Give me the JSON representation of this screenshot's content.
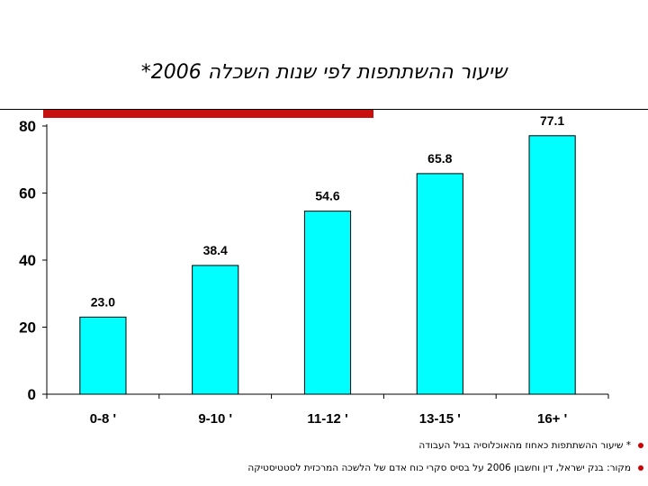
{
  "chart_data": {
    "type": "bar",
    "title": "שיעור ההשתתפות לפי שנות השכלה 2006*",
    "categories": [
      "0-8 '",
      "9-10 '",
      "11-12 '",
      "13-15 '",
      "16+ '"
    ],
    "values": [
      23.0,
      38.4,
      54.6,
      65.8,
      77.1
    ],
    "value_labels": [
      "23.0",
      "38.4",
      "54.6",
      "65.8",
      "77.1"
    ],
    "yticks": [
      "0",
      "20",
      "40",
      "60",
      "80"
    ],
    "ytick_values": [
      0,
      20,
      40,
      60,
      80
    ],
    "ylim": [
      0,
      80
    ],
    "xlabel": "",
    "ylabel": "",
    "grid": false,
    "bar_color": "#00ffff",
    "bar_outline": "#000000"
  },
  "accent": {
    "red_bar": "#c81010",
    "bullet": "#cc0000"
  },
  "footnotes": [
    "* שיעור ההשתתפות כאחוז מהאוכלוסיה בגיל העבודה",
    "מקור: בנק ישראל, דין וחשבון 2006 על בסיס סקרי כוח אדם של הלשכה המרכזית לסטטיסטיקה"
  ]
}
